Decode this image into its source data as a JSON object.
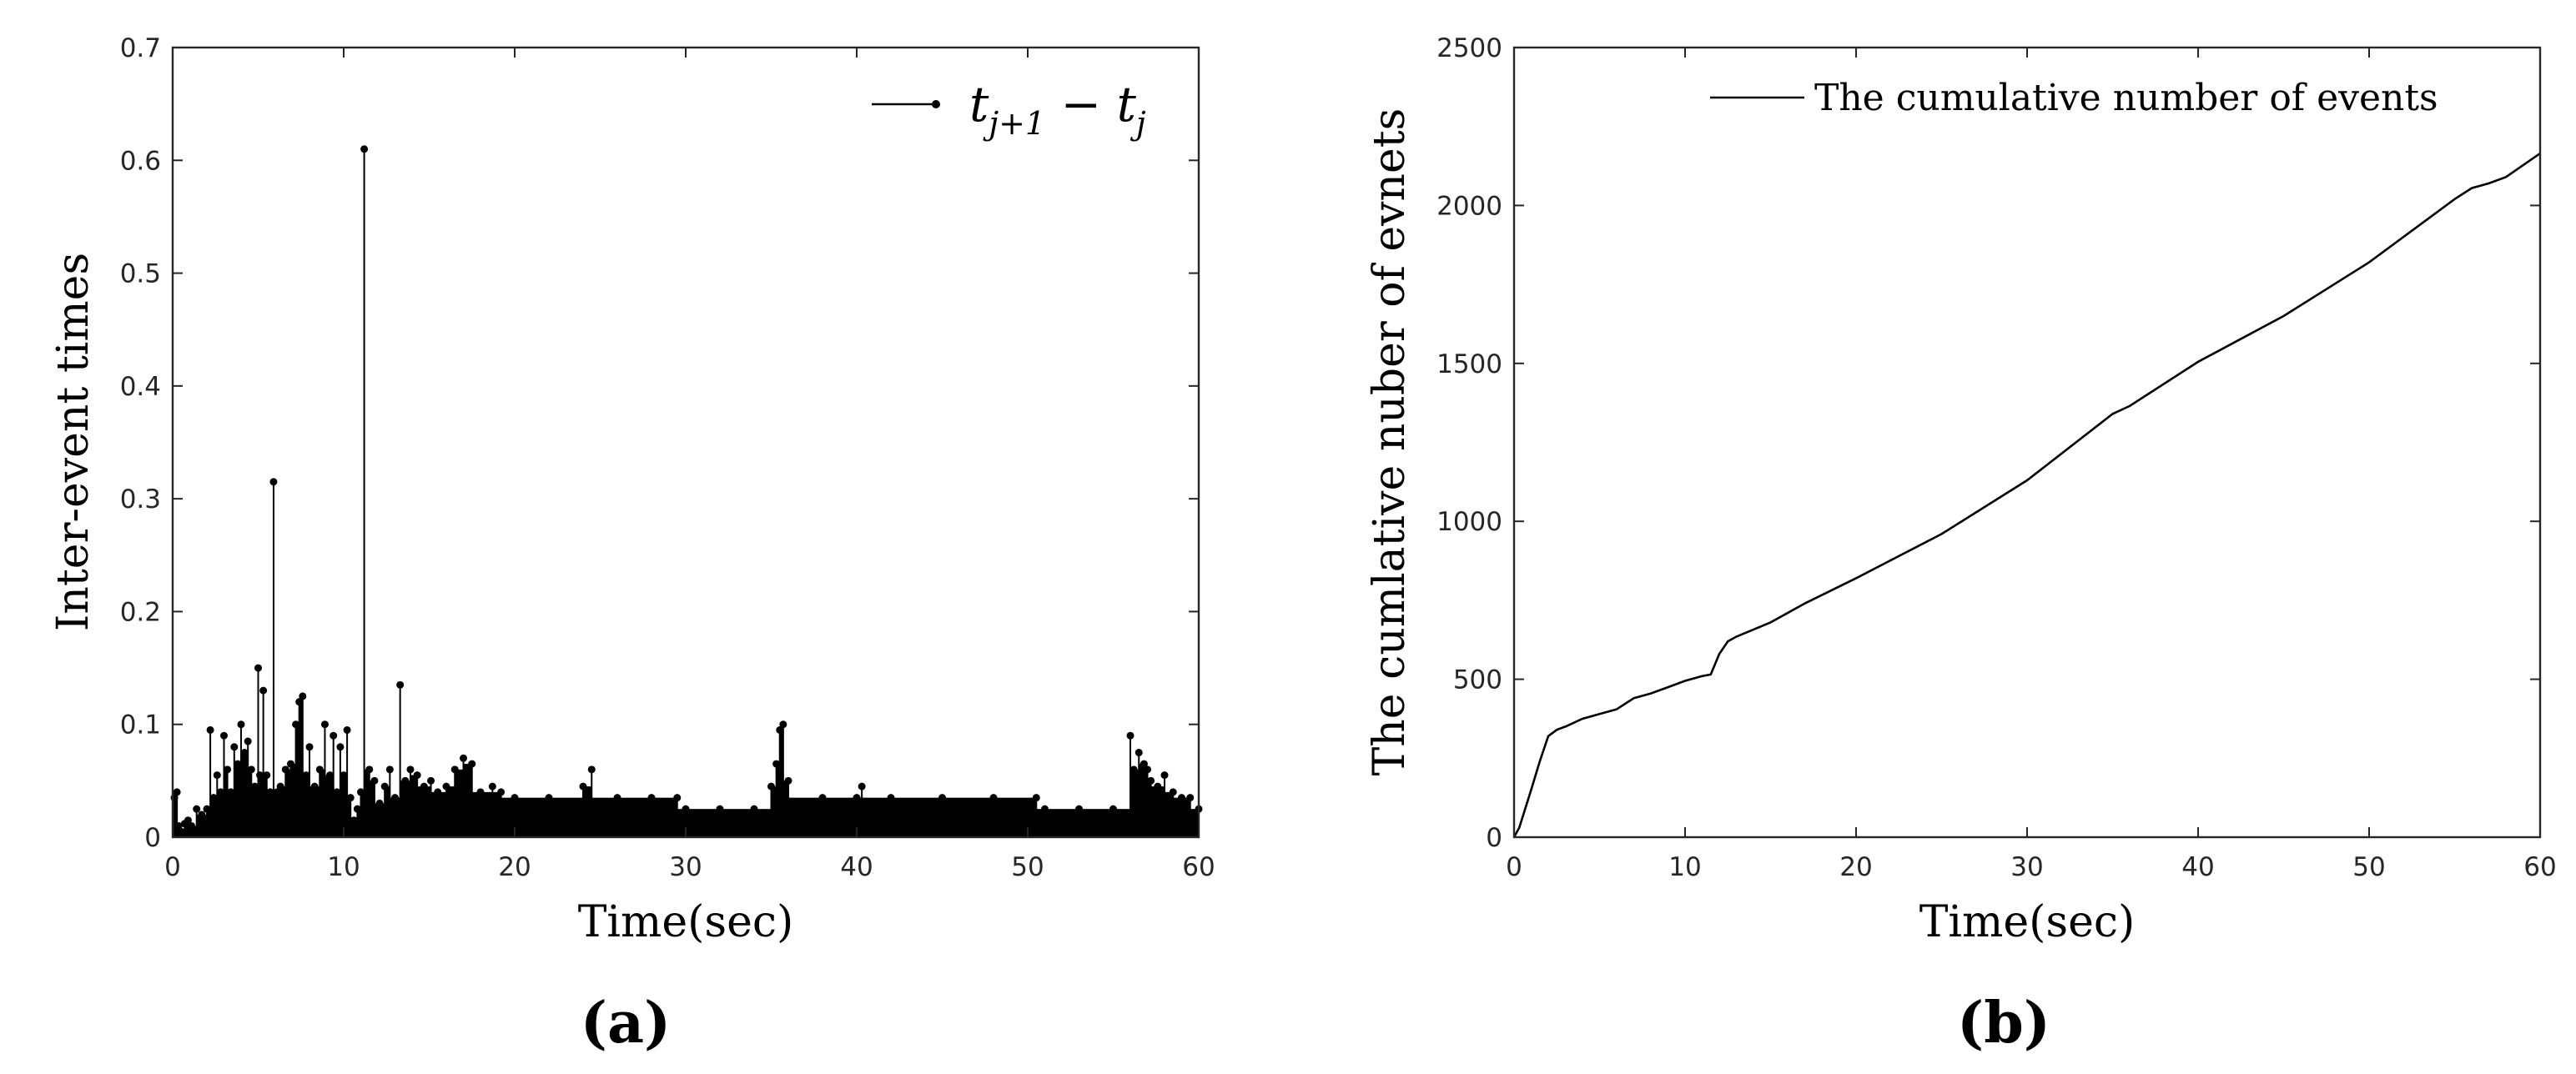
{
  "chart_data": [
    {
      "type": "stem",
      "panel_label": "(a)",
      "xlabel": "Time(sec)",
      "ylabel": "Inter-event times",
      "legend": "t_{j+1} - t_j",
      "legend_position": "top-right",
      "xlim": [
        0,
        60
      ],
      "ylim": [
        0,
        0.7
      ],
      "xticks": [
        "0",
        "10",
        "20",
        "30",
        "40",
        "50",
        "60"
      ],
      "yticks": [
        "0",
        "0.1",
        "0.2",
        "0.3",
        "0.4",
        "0.5",
        "0.6",
        "0.7"
      ],
      "grid": false,
      "series": [
        {
          "x": [
            0.1,
            0.25,
            0.35,
            0.5,
            0.7,
            0.9,
            1.1,
            1.4,
            1.7,
            2.0,
            2.2,
            2.4,
            2.6,
            2.8,
            3.0,
            3.2,
            3.4,
            3.6,
            3.8,
            4.0,
            4.2,
            4.4,
            4.6,
            4.8,
            5.0,
            5.1,
            5.3,
            5.5,
            5.7,
            5.9,
            6.1,
            6.3,
            6.6,
            6.9,
            7.2,
            7.4,
            7.6,
            7.8,
            8.0,
            8.3,
            8.6,
            8.9,
            9.2,
            9.4,
            9.6,
            9.8,
            10.0,
            10.2,
            10.4,
            10.6,
            10.8,
            11.0,
            11.2,
            11.5,
            11.8,
            12.1,
            12.4,
            12.7,
            13.0,
            13.3,
            13.6,
            13.9,
            14.3,
            14.7,
            15.1,
            15.5,
            16.0,
            16.5,
            17.0,
            17.5,
            18.0,
            18.7,
            19.2,
            20.0,
            22.0,
            24.0,
            24.5,
            26.0,
            28.0,
            29.5,
            30.0,
            32.0,
            34.0,
            35.0,
            35.3,
            35.5,
            35.7,
            36.0,
            38.0,
            40.0,
            40.3,
            42.0,
            45.0,
            48.0,
            50.5,
            51.0,
            53.0,
            55.0,
            56.0,
            56.2,
            56.5,
            56.8,
            57.0,
            57.2,
            57.6,
            58.0,
            58.5,
            59.0,
            59.5,
            60.0
          ],
          "values": [
            0.035,
            0.04,
            0.01,
            0.005,
            0.012,
            0.015,
            0.01,
            0.025,
            0.02,
            0.025,
            0.095,
            0.035,
            0.055,
            0.04,
            0.09,
            0.06,
            0.04,
            0.08,
            0.065,
            0.1,
            0.075,
            0.085,
            0.06,
            0.045,
            0.15,
            0.055,
            0.13,
            0.055,
            0.04,
            0.315,
            0.04,
            0.045,
            0.06,
            0.065,
            0.1,
            0.12,
            0.125,
            0.055,
            0.08,
            0.045,
            0.06,
            0.1,
            0.055,
            0.09,
            0.04,
            0.08,
            0.055,
            0.095,
            0.035,
            0.015,
            0.025,
            0.04,
            0.61,
            0.06,
            0.05,
            0.03,
            0.045,
            0.06,
            0.035,
            0.135,
            0.05,
            0.06,
            0.055,
            0.045,
            0.05,
            0.04,
            0.045,
            0.06,
            0.07,
            0.065,
            0.04,
            0.045,
            0.04,
            0.035,
            0.035,
            0.045,
            0.06,
            0.035,
            0.035,
            0.035,
            0.025,
            0.025,
            0.025,
            0.045,
            0.065,
            0.095,
            0.1,
            0.05,
            0.035,
            0.035,
            0.045,
            0.035,
            0.035,
            0.035,
            0.035,
            0.025,
            0.025,
            0.025,
            0.09,
            0.06,
            0.075,
            0.065,
            0.06,
            0.05,
            0.045,
            0.055,
            0.04,
            0.035,
            0.035,
            0.025
          ]
        }
      ]
    },
    {
      "type": "line",
      "panel_label": "(b)",
      "xlabel": "Time(sec)",
      "ylabel": "The cumlative nuber of evnets",
      "legend": "The cumulative number of events",
      "legend_position": "top-right",
      "xlim": [
        0,
        60
      ],
      "ylim": [
        0,
        2500
      ],
      "xticks": [
        "0",
        "10",
        "20",
        "30",
        "40",
        "50",
        "60"
      ],
      "yticks": [
        "0",
        "500",
        "1000",
        "1500",
        "2000",
        "2500"
      ],
      "grid": false,
      "series": [
        {
          "name": "The cumulative number of events",
          "x": [
            0,
            0.3,
            1.0,
            1.5,
            2.0,
            2.5,
            3.0,
            4.0,
            5.0,
            6.0,
            7.0,
            8.0,
            9.0,
            10.0,
            11.0,
            11.5,
            12.0,
            12.5,
            13.0,
            15.0,
            17.0,
            20.0,
            25.0,
            30.0,
            35.0,
            36.0,
            40.0,
            45.0,
            50.0,
            55.0,
            56.0,
            57.0,
            58.0,
            60.0
          ],
          "values": [
            0,
            30,
            150,
            240,
            320,
            340,
            350,
            375,
            390,
            405,
            440,
            455,
            475,
            495,
            510,
            515,
            580,
            620,
            635,
            680,
            740,
            820,
            960,
            1130,
            1340,
            1365,
            1505,
            1650,
            1820,
            2020,
            2055,
            2070,
            2090,
            2165
          ]
        }
      ]
    }
  ]
}
